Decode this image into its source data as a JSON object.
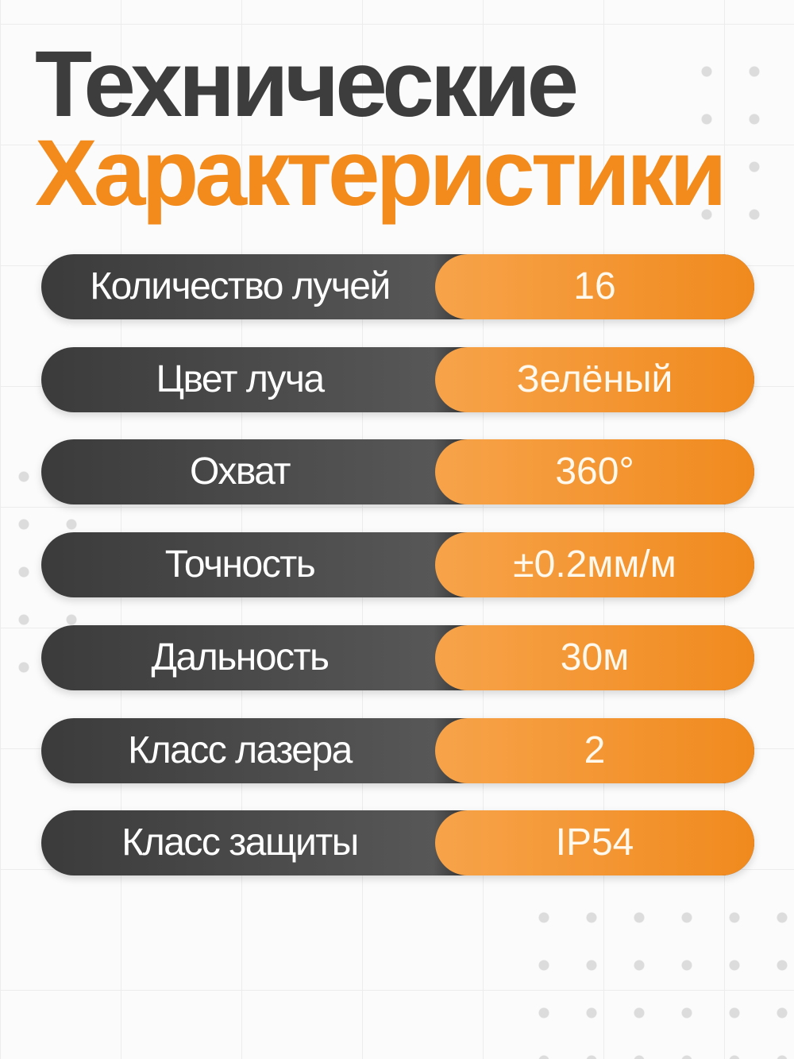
{
  "title": {
    "line1": "Технические",
    "line2": "Характеристики"
  },
  "colors": {
    "accent": "#f28a1c",
    "dark": "#3b3b3b"
  },
  "specs": [
    {
      "label": "Количество лучей",
      "value": "16"
    },
    {
      "label": "Цвет луча",
      "value": "Зелёный"
    },
    {
      "label": "Охват",
      "value": "360°"
    },
    {
      "label": "Точность",
      "value": "±0.2мм/м"
    },
    {
      "label": "Дальность",
      "value": "30м"
    },
    {
      "label": "Класс лазера",
      "value": "2"
    },
    {
      "label": "Класс защиты",
      "value": "IP54"
    }
  ]
}
